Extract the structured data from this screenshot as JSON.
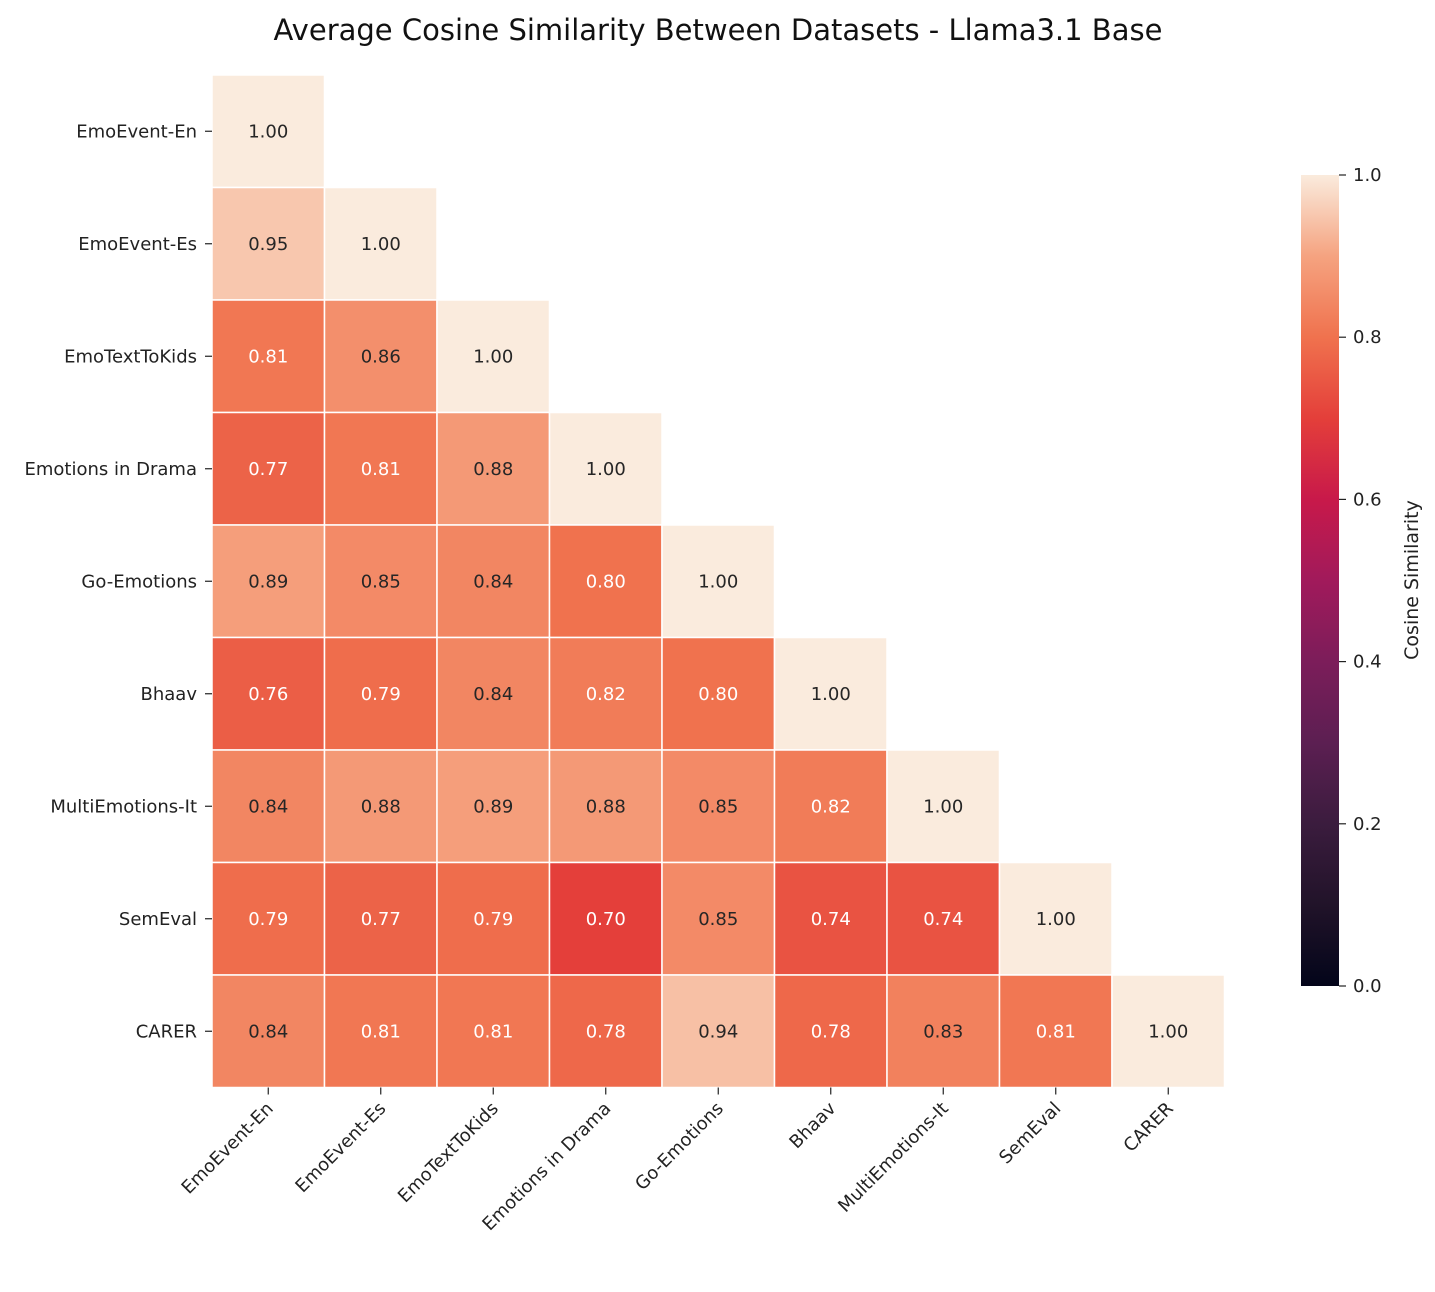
{
  "chart_data": {
    "type": "heatmap",
    "title": "Average Cosine Similarity Between Datasets - Llama3.1 Base",
    "mask": "upper-triangle",
    "row_labels": [
      "EmoEvent-En",
      "EmoEvent-Es",
      "EmoTextToKids",
      "Emotions in Drama",
      "Go-Emotions",
      "Bhaav",
      "MultiEmotions-It",
      "SemEval",
      "CARER"
    ],
    "col_labels": [
      "EmoEvent-En",
      "EmoEvent-Es",
      "EmoTextToKids",
      "Emotions in Drama",
      "Go-Emotions",
      "Bhaav",
      "MultiEmotions-It",
      "SemEval",
      "CARER"
    ],
    "values": [
      [
        1.0
      ],
      [
        0.95,
        1.0
      ],
      [
        0.81,
        0.86,
        1.0
      ],
      [
        0.77,
        0.81,
        0.88,
        1.0
      ],
      [
        0.89,
        0.85,
        0.84,
        0.8,
        1.0
      ],
      [
        0.76,
        0.79,
        0.84,
        0.82,
        0.8,
        1.0
      ],
      [
        0.84,
        0.88,
        0.89,
        0.88,
        0.85,
        0.82,
        1.0
      ],
      [
        0.79,
        0.77,
        0.79,
        0.7,
        0.85,
        0.74,
        0.74,
        1.0
      ],
      [
        0.84,
        0.81,
        0.81,
        0.78,
        0.94,
        0.78,
        0.83,
        0.81,
        1.0
      ]
    ],
    "colormap": "rocket",
    "vmin": 0.0,
    "vmax": 1.0,
    "colorbar": {
      "label": "Cosine Similarity",
      "ticks": [
        "0.0",
        "0.2",
        "0.4",
        "0.6",
        "0.8",
        "1.0"
      ],
      "placement": "right"
    }
  }
}
